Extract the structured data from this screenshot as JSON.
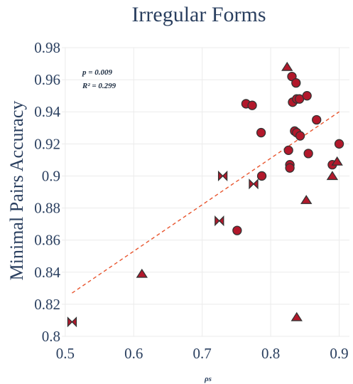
{
  "chart_data": {
    "type": "scatter",
    "title": "Irregular Forms",
    "xlabel": "ρs",
    "ylabel": "Minimal Pairs Accuracy",
    "xlim": [
      0.495,
      0.915
    ],
    "ylim": [
      0.8,
      0.98
    ],
    "xticks": [
      0.5,
      0.6,
      0.7,
      0.8,
      0.9
    ],
    "yticks": [
      0.8,
      0.82,
      0.84,
      0.86,
      0.88,
      0.9,
      0.92,
      0.94,
      0.96,
      0.98
    ],
    "xtick_labels": [
      "0.5",
      "0.6",
      "0.7",
      "0.8",
      "0.9"
    ],
    "ytick_labels": [
      "0.8",
      "0.82",
      "0.84",
      "0.86",
      "0.88",
      "0.9",
      "0.92",
      "0.94",
      "0.96",
      "0.98"
    ],
    "grid": true,
    "annotations": [
      "p = 0.009",
      "R² = 0.299"
    ],
    "marker_color": "#b2182b",
    "trendline": {
      "color": "#e8552e",
      "x": [
        0.51,
        0.9
      ],
      "y": [
        0.827,
        0.94
      ]
    },
    "series": [
      {
        "marker": "circle",
        "points": [
          [
            0.764,
            0.945
          ],
          [
            0.773,
            0.944
          ],
          [
            0.786,
            0.927
          ],
          [
            0.787,
            0.9
          ],
          [
            0.751,
            0.866
          ],
          [
            0.826,
            0.916
          ],
          [
            0.828,
            0.907
          ],
          [
            0.828,
            0.905
          ],
          [
            0.831,
            0.962
          ],
          [
            0.832,
            0.946
          ],
          [
            0.835,
            0.928
          ],
          [
            0.837,
            0.958
          ],
          [
            0.838,
            0.948
          ],
          [
            0.838,
            0.927
          ],
          [
            0.842,
            0.948
          ],
          [
            0.843,
            0.925
          ],
          [
            0.853,
            0.95
          ],
          [
            0.855,
            0.914
          ],
          [
            0.867,
            0.935
          ],
          [
            0.89,
            0.907
          ],
          [
            0.9,
            0.92
          ]
        ]
      },
      {
        "marker": "triangle",
        "points": [
          [
            0.612,
            0.839
          ],
          [
            0.824,
            0.968
          ],
          [
            0.852,
            0.885
          ],
          [
            0.838,
            0.812
          ],
          [
            0.89,
            0.9
          ],
          [
            0.897,
            0.909
          ]
        ]
      },
      {
        "marker": "bowtie",
        "points": [
          [
            0.51,
            0.809
          ],
          [
            0.73,
            0.9
          ],
          [
            0.725,
            0.872
          ],
          [
            0.775,
            0.895
          ]
        ]
      }
    ]
  }
}
